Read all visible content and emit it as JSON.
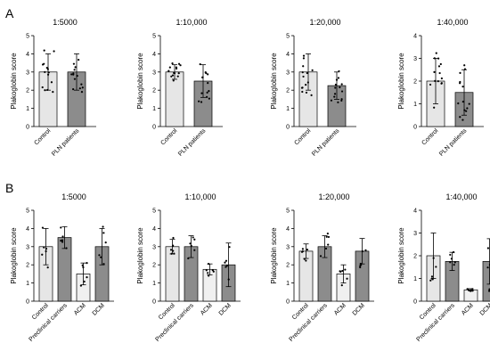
{
  "figure": {
    "panel_A_label": "A",
    "panel_B_label": "B",
    "colors": {
      "control": "#e6e6e6",
      "light": "#f0f0f0",
      "dark": "#8c8c8c",
      "mid": "#b3b3b3",
      "axis": "#000000"
    }
  },
  "chart_data": [
    {
      "type": "bar",
      "panel": "A",
      "title": "1:5000",
      "ylabel": "Plakoglobin score",
      "ylim": [
        0,
        5
      ],
      "yticks": [
        0,
        1,
        2,
        3,
        4,
        5
      ],
      "categories": [
        "Control",
        "PLN patients"
      ],
      "values": [
        3.0,
        3.0
      ],
      "sd": [
        1.0,
        1.0
      ]
    },
    {
      "type": "bar",
      "panel": "A",
      "title": "1:10,000",
      "ylabel": "Plakoglobin score",
      "ylim": [
        0,
        5
      ],
      "yticks": [
        0,
        1,
        2,
        3,
        4,
        5
      ],
      "categories": [
        "Control",
        "PLN patients"
      ],
      "values": [
        3.0,
        2.5
      ],
      "sd": [
        0.4,
        0.9
      ]
    },
    {
      "type": "bar",
      "panel": "A",
      "title": "1:20,000",
      "ylabel": "Plakoglobin score",
      "ylim": [
        0,
        5
      ],
      "yticks": [
        0,
        1,
        2,
        3,
        4,
        5
      ],
      "categories": [
        "Control",
        "PLN patients"
      ],
      "values": [
        3.0,
        2.25
      ],
      "sd": [
        1.0,
        0.75
      ]
    },
    {
      "type": "bar",
      "panel": "A",
      "title": "1:40,000",
      "ylabel": "Plakoglobin score",
      "ylim": [
        0,
        4
      ],
      "yticks": [
        0,
        1,
        2,
        3,
        4
      ],
      "categories": [
        "Control",
        "PLN patients"
      ],
      "values": [
        2.0,
        1.5
      ],
      "sd": [
        1.0,
        1.0
      ]
    },
    {
      "type": "bar",
      "panel": "B",
      "title": "1:5000",
      "ylabel": "Plakoglobin score",
      "ylim": [
        0,
        5
      ],
      "yticks": [
        0,
        1,
        2,
        3,
        4,
        5
      ],
      "categories": [
        "Control",
        "Preclinical carriers",
        "ACM",
        "DCM"
      ],
      "values": [
        3.0,
        3.5,
        1.5,
        3.0
      ],
      "sd": [
        1.0,
        0.6,
        0.6,
        1.0
      ]
    },
    {
      "type": "bar",
      "panel": "B",
      "title": "1:10,000",
      "ylabel": "Plakoglobin score",
      "ylim": [
        0,
        5
      ],
      "yticks": [
        0,
        1,
        2,
        3,
        4,
        5
      ],
      "categories": [
        "Control",
        "Preclinical carriers",
        "ACM",
        "DCM"
      ],
      "values": [
        3.0,
        3.0,
        1.75,
        2.0
      ],
      "sd": [
        0.4,
        0.6,
        0.3,
        1.2
      ]
    },
    {
      "type": "bar",
      "panel": "B",
      "title": "1:20,000",
      "ylabel": "Plakoglobin score",
      "ylim": [
        0,
        5
      ],
      "yticks": [
        0,
        1,
        2,
        3,
        4,
        5
      ],
      "categories": [
        "Control",
        "Preclinical carriers",
        "ACM",
        "DCM"
      ],
      "values": [
        2.75,
        3.0,
        1.5,
        2.75
      ],
      "sd": [
        0.4,
        0.6,
        0.5,
        0.7
      ]
    },
    {
      "type": "bar",
      "panel": "B",
      "title": "1:40,000",
      "ylabel": "Plakoglobin score",
      "ylim": [
        0,
        4
      ],
      "yticks": [
        0,
        1,
        2,
        3,
        4
      ],
      "categories": [
        "Control",
        "Preclinical carriers",
        "ACM",
        "DCM"
      ],
      "values": [
        2.0,
        1.75,
        0.5,
        1.75
      ],
      "sd": [
        1.0,
        0.4,
        0.05,
        1.0
      ]
    }
  ]
}
